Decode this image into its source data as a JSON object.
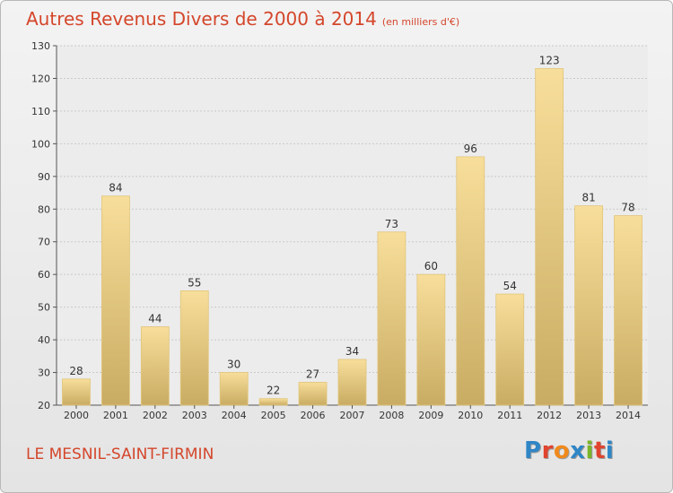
{
  "header": {
    "title": "Autres Revenus Divers de 2000 à 2014",
    "subtitle": "(en milliers d'€)"
  },
  "footer": {
    "commune": "LE MESNIL-SAINT-FIRMIN",
    "logo": "Proxiti"
  },
  "colors": {
    "title": "#d4462b",
    "bar_light": "#f7de9a",
    "bar_dark": "#c9ac63",
    "logo": [
      "#2f86c6",
      "#e0442f",
      "#f08a1c",
      "#2f86c6",
      "#7bb52a",
      "#e0442f",
      "#2f86c6"
    ]
  },
  "chart_data": {
    "type": "bar",
    "categories": [
      "2000",
      "2001",
      "2002",
      "2003",
      "2004",
      "2005",
      "2006",
      "2007",
      "2008",
      "2009",
      "2010",
      "2011",
      "2012",
      "2013",
      "2014"
    ],
    "values": [
      28,
      84,
      44,
      55,
      30,
      22,
      27,
      34,
      73,
      60,
      96,
      54,
      123,
      81,
      78
    ],
    "title": "Autres Revenus Divers de 2000 à 2014",
    "xlabel": "",
    "ylabel": "",
    "ylim": [
      20,
      130
    ],
    "yticks": [
      20,
      30,
      40,
      50,
      60,
      70,
      80,
      90,
      100,
      110,
      120,
      130
    ],
    "grid": true,
    "legend": "none"
  }
}
